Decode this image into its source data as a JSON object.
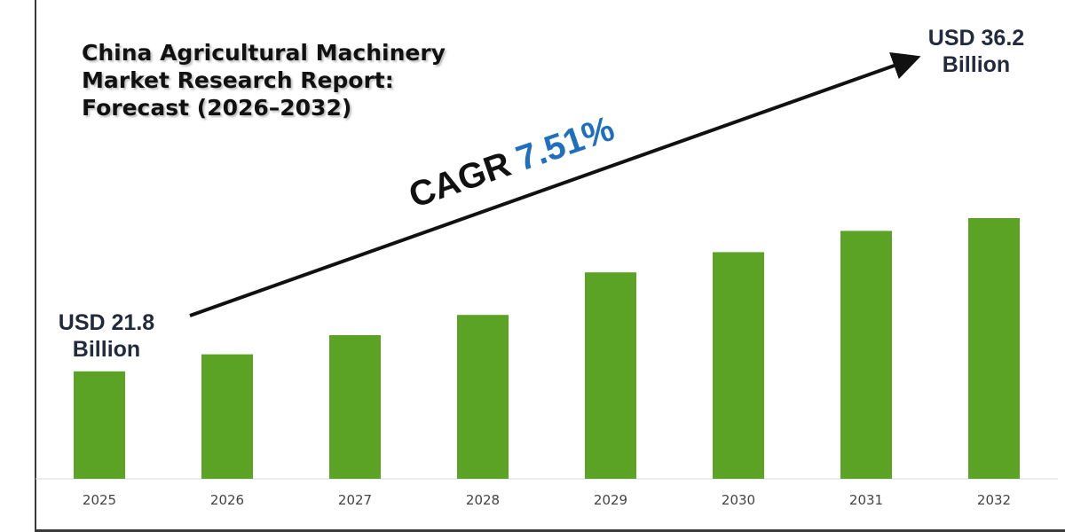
{
  "title_lines": [
    "China Agricultural Machinery",
    "Market Research Report:",
    "Forecast (2026–2032)"
  ],
  "cagr": {
    "label": "CAGR",
    "value": "7.51%"
  },
  "start_callout": {
    "prefix": "USD",
    "value": "21.8",
    "unit": "Billion"
  },
  "end_callout": {
    "prefix": "USD",
    "value": "36.2",
    "unit": "Billion"
  },
  "colors": {
    "bar": "#5aa324",
    "arrow": "#111111",
    "cagr_value": "#1f6fc0",
    "axis_text": "#444444",
    "baseline": "#d9d9d9"
  },
  "chart_data": {
    "type": "bar",
    "title": "China Agricultural Machinery Market Research Report: Forecast (2026–2032)",
    "xlabel": "",
    "ylabel": "",
    "unit": "USD Billion",
    "categories": [
      "2025",
      "2026",
      "2027",
      "2028",
      "2029",
      "2030",
      "2031",
      "2032"
    ],
    "values": [
      21.8,
      23.4,
      25.2,
      27.1,
      31.1,
      33.0,
      35.0,
      36.2
    ],
    "ylim": [
      0,
      40
    ],
    "grid": false,
    "legend": "none",
    "annotations": [
      "USD 21.8 Billion",
      "USD 36.2 Billion",
      "CAGR 7.51%"
    ]
  }
}
